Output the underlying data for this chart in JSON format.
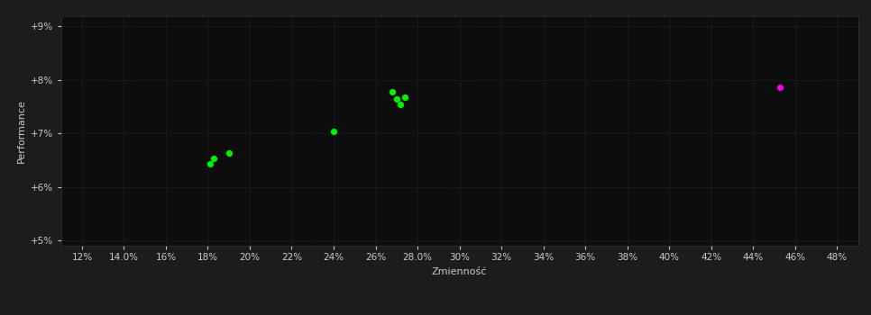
{
  "outer_bg_color": "#1c1c1c",
  "plot_bg_color": "#0d0d0d",
  "grid_color": "#2a2a2a",
  "text_color": "#cccccc",
  "xlabel": "Zmienność",
  "ylabel": "Performance",
  "xlim": [
    0.11,
    0.49
  ],
  "ylim": [
    0.049,
    0.092
  ],
  "xticks": [
    0.12,
    0.14,
    0.16,
    0.18,
    0.2,
    0.22,
    0.24,
    0.26,
    0.28,
    0.3,
    0.32,
    0.34,
    0.36,
    0.38,
    0.4,
    0.42,
    0.44,
    0.46,
    0.48
  ],
  "yticks": [
    0.05,
    0.06,
    0.07,
    0.08,
    0.09
  ],
  "green_points": [
    [
      0.181,
      0.0643
    ],
    [
      0.183,
      0.0653
    ],
    [
      0.19,
      0.0663
    ],
    [
      0.24,
      0.0703
    ],
    [
      0.268,
      0.0778
    ],
    [
      0.27,
      0.0765
    ],
    [
      0.272,
      0.0755
    ],
    [
      0.274,
      0.0768
    ]
  ],
  "magenta_points": [
    [
      0.453,
      0.0786
    ]
  ],
  "point_size": 18,
  "green_color": "#00ee00",
  "magenta_color": "#ee00ee",
  "spine_color": "#333333",
  "xlabel_fontsize": 8,
  "ylabel_fontsize": 8,
  "tick_labelsize": 7.5
}
